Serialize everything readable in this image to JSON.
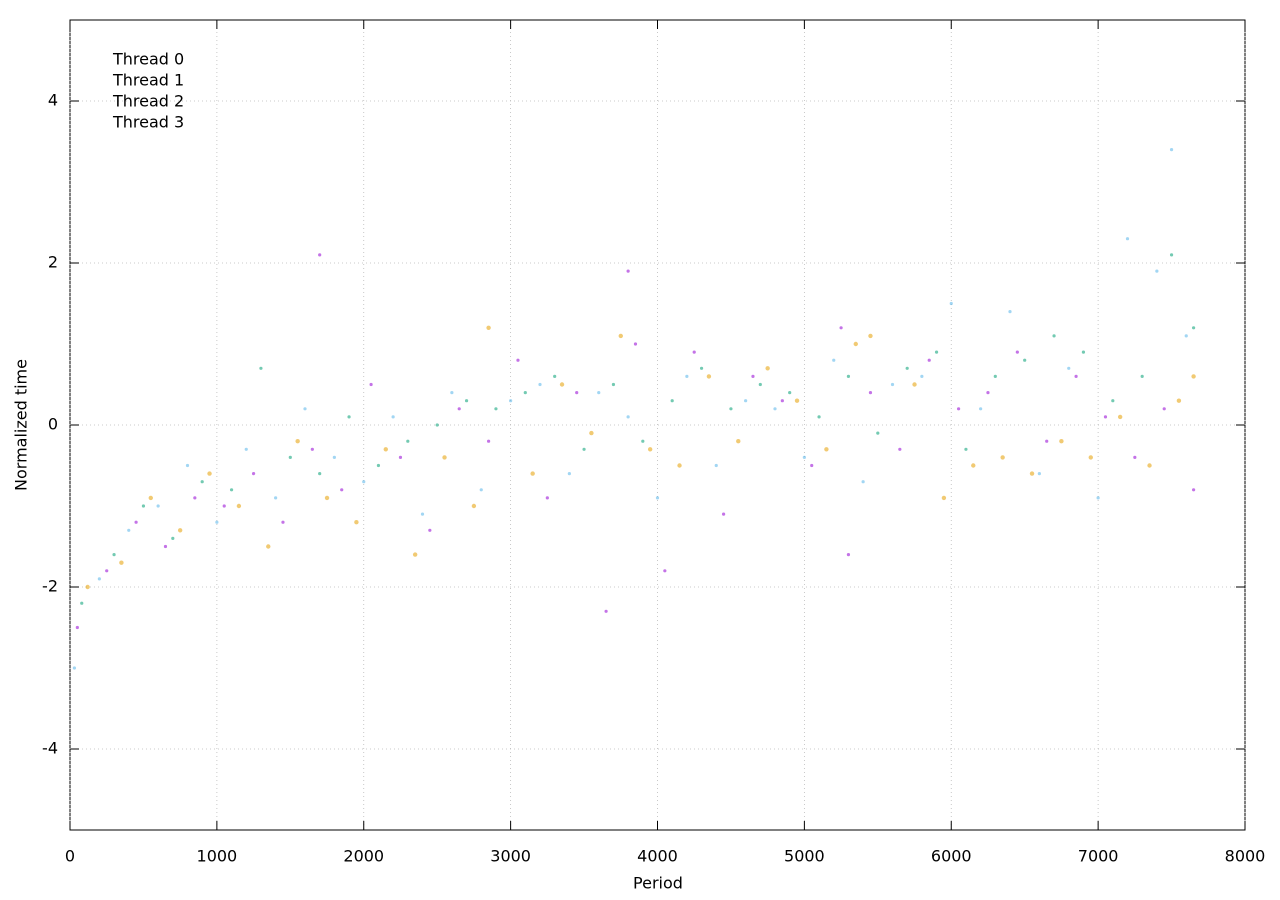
{
  "chart_data": {
    "type": "scatter",
    "x_label": "Period",
    "y_label": "Normalized time",
    "xlim": [
      0,
      8000
    ],
    "ylim": [
      -5,
      5
    ],
    "xticks": [
      0,
      1000,
      2000,
      3000,
      4000,
      5000,
      6000,
      7000,
      8000
    ],
    "yticks": [
      -4,
      -2,
      0,
      2,
      4
    ],
    "grid": true,
    "legend": "top left",
    "series": [
      {
        "name": "Thread 0",
        "color": "#9400d3",
        "x": [
          50,
          250,
          450,
          650,
          850,
          1050,
          1250,
          1450,
          1650,
          1850,
          2050,
          2250,
          2450,
          2650,
          2850,
          3050,
          3250,
          3450,
          3650,
          3850,
          4050,
          4250,
          4450,
          4650,
          4850,
          5050,
          5250,
          5450,
          5650,
          5850,
          6050,
          6250,
          6450,
          6650,
          6850,
          7050,
          7250,
          7450,
          7650,
          1700,
          3800,
          5300
        ],
        "values": [
          -2.5,
          -1.8,
          -1.2,
          -1.5,
          -0.9,
          -1.0,
          -0.6,
          -1.2,
          -0.3,
          -0.8,
          0.5,
          -0.4,
          -1.3,
          0.2,
          -0.2,
          0.8,
          -0.9,
          0.4,
          -2.3,
          1.0,
          -1.8,
          0.9,
          -1.1,
          0.6,
          0.3,
          -0.5,
          1.2,
          0.4,
          -0.3,
          0.8,
          0.2,
          0.4,
          0.9,
          -0.2,
          0.6,
          0.1,
          -0.4,
          0.2,
          -0.8,
          2.1,
          1.9,
          -1.6
        ]
      },
      {
        "name": "Thread 1",
        "color": "#009e73",
        "x": [
          80,
          300,
          500,
          700,
          900,
          1100,
          1300,
          1500,
          1700,
          1900,
          2100,
          2300,
          2500,
          2700,
          2900,
          3100,
          3300,
          3500,
          3700,
          3900,
          4100,
          4300,
          4500,
          4700,
          4900,
          5100,
          5300,
          5500,
          5700,
          5900,
          6100,
          6300,
          6500,
          6700,
          6900,
          7100,
          7300,
          7500,
          7650
        ],
        "values": [
          -2.2,
          -1.6,
          -1.0,
          -1.4,
          -0.7,
          -0.8,
          0.7,
          -0.4,
          -0.6,
          0.1,
          -0.5,
          -0.2,
          0.0,
          0.3,
          0.2,
          0.4,
          0.6,
          -0.3,
          0.5,
          -0.2,
          0.3,
          0.7,
          0.2,
          0.5,
          0.4,
          0.1,
          0.6,
          -0.1,
          0.7,
          0.9,
          -0.3,
          0.6,
          0.8,
          1.1,
          0.9,
          0.3,
          0.6,
          2.1,
          1.2
        ]
      },
      {
        "name": "Thread 2",
        "color": "#56b4e9",
        "x": [
          30,
          200,
          400,
          600,
          800,
          1000,
          1200,
          1400,
          1600,
          1800,
          2000,
          2200,
          2400,
          2600,
          2800,
          3000,
          3200,
          3400,
          3600,
          3800,
          4000,
          4200,
          4400,
          4600,
          4800,
          5000,
          5200,
          5400,
          5600,
          5800,
          6000,
          6200,
          6400,
          6600,
          6800,
          7000,
          7200,
          7400,
          7600,
          7500
        ],
        "values": [
          -3.0,
          -1.9,
          -1.3,
          -1.0,
          -0.5,
          -1.2,
          -0.3,
          -0.9,
          0.2,
          -0.4,
          -0.7,
          0.1,
          -1.1,
          0.4,
          -0.8,
          0.3,
          0.5,
          -0.6,
          0.4,
          0.1,
          -0.9,
          0.6,
          -0.5,
          0.3,
          0.2,
          -0.4,
          0.8,
          -0.7,
          0.5,
          0.6,
          1.5,
          0.2,
          1.4,
          -0.6,
          0.7,
          -0.9,
          2.3,
          1.9,
          1.1,
          3.4
        ]
      },
      {
        "name": "Thread 3",
        "color": "#e69f00",
        "x": [
          120,
          350,
          550,
          750,
          950,
          1150,
          1350,
          1550,
          1750,
          1950,
          2150,
          2350,
          2550,
          2750,
          2850,
          3150,
          3350,
          3550,
          3750,
          3950,
          4150,
          4350,
          4550,
          4750,
          4950,
          5150,
          5350,
          5450,
          5750,
          5950,
          6150,
          6350,
          6550,
          6750,
          6950,
          7150,
          7350,
          7550,
          7650
        ],
        "values": [
          -2.0,
          -1.7,
          -0.9,
          -1.3,
          -0.6,
          -1.0,
          -1.5,
          -0.2,
          -0.9,
          -1.2,
          -0.3,
          -1.6,
          -0.4,
          -1.0,
          1.2,
          -0.6,
          0.5,
          -0.1,
          1.1,
          -0.3,
          -0.5,
          0.6,
          -0.2,
          0.7,
          0.3,
          -0.3,
          1.0,
          1.1,
          0.5,
          -0.9,
          -0.5,
          -0.4,
          -0.6,
          -0.2,
          -0.4,
          0.1,
          -0.5,
          0.3,
          0.6
        ]
      }
    ]
  }
}
